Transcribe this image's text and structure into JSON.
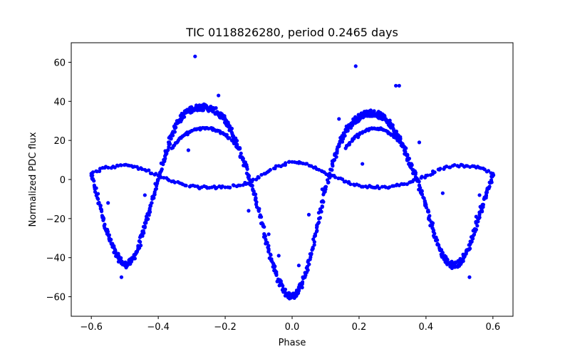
{
  "chart_data": {
    "type": "scatter",
    "title": "TIC 0118826280, period 0.2465 days",
    "xlabel": "Phase",
    "ylabel": "Normalized PDC flux",
    "xlim": [
      -0.66,
      0.66
    ],
    "ylim": [
      -70,
      70
    ],
    "xticks": [
      -0.6,
      -0.4,
      -0.2,
      0.0,
      0.2,
      0.4,
      0.6
    ],
    "xtick_labels": [
      "−0.6",
      "−0.4",
      "−0.2",
      "0.0",
      "0.2",
      "0.4",
      "0.6"
    ],
    "yticks": [
      -60,
      -40,
      -20,
      0,
      20,
      40,
      60
    ],
    "ytick_labels": [
      "−60",
      "−40",
      "−20",
      "0",
      "20",
      "40",
      "60"
    ],
    "grid": false,
    "marker_color": "#0000ff",
    "series": [
      {
        "values_note": "main folded light curve (upper branch)",
        "x": [
          -0.6,
          -0.58,
          -0.56,
          -0.54,
          -0.52,
          -0.5,
          -0.48,
          -0.46,
          -0.44,
          -0.42,
          -0.4,
          -0.38,
          -0.36,
          -0.34,
          -0.32,
          -0.3,
          -0.28,
          -0.26,
          -0.24,
          -0.22,
          -0.2,
          -0.18,
          -0.16,
          -0.14,
          -0.12,
          -0.1,
          -0.08,
          -0.06,
          -0.04,
          -0.02,
          0.0,
          0.02,
          0.04,
          0.06,
          0.08,
          0.1,
          0.12,
          0.14,
          0.16,
          0.18,
          0.2,
          0.22,
          0.24,
          0.26,
          0.28,
          0.3,
          0.32,
          0.34,
          0.36,
          0.38,
          0.4,
          0.42,
          0.44,
          0.46,
          0.48,
          0.5,
          0.52,
          0.54,
          0.56,
          0.58,
          0.6
        ],
        "y": [
          2,
          -10,
          -23,
          -33,
          -40,
          -44,
          -42,
          -35,
          -24,
          -12,
          0,
          12,
          23,
          30,
          34,
          36,
          37,
          37,
          36,
          34,
          30,
          24,
          16,
          7,
          -3,
          -15,
          -29,
          -42,
          -52,
          -58,
          -60,
          -57,
          -49,
          -36,
          -20,
          -5,
          8,
          18,
          25,
          29,
          32,
          34,
          34,
          33,
          31,
          27,
          21,
          13,
          5,
          -3,
          -13,
          -25,
          -35,
          -42,
          -44,
          -43,
          -38,
          -29,
          -18,
          -8,
          2
        ]
      },
      {
        "values_note": "lower branch of main curve",
        "x": [
          -0.36,
          -0.34,
          -0.32,
          -0.3,
          -0.28,
          -0.26,
          -0.24,
          -0.22,
          -0.2,
          -0.18,
          -0.16,
          0.16,
          0.18,
          0.2,
          0.22,
          0.24,
          0.26,
          0.28,
          0.3,
          0.32,
          0.34
        ],
        "y": [
          16,
          20,
          23,
          25,
          26,
          26,
          26,
          25,
          23,
          20,
          16,
          16,
          20,
          23,
          25,
          26,
          26,
          25,
          23,
          20,
          16
        ]
      },
      {
        "values_note": "secondary low-amplitude curve",
        "x": [
          -0.6,
          -0.56,
          -0.52,
          -0.48,
          -0.44,
          -0.4,
          -0.36,
          -0.32,
          -0.28,
          -0.24,
          -0.2,
          -0.16,
          -0.12,
          -0.08,
          -0.04,
          0.0,
          0.04,
          0.08,
          0.12,
          0.16,
          0.2,
          0.24,
          0.28,
          0.32,
          0.36,
          0.4,
          0.44,
          0.48,
          0.52,
          0.56,
          0.6
        ],
        "y": [
          3,
          6,
          7,
          7,
          5,
          2,
          -1,
          -3,
          -4,
          -4,
          -4,
          -3,
          -1,
          3,
          7,
          9,
          8,
          5,
          2,
          -1,
          -3,
          -4,
          -4,
          -3,
          -1,
          2,
          5,
          7,
          7,
          6,
          3
        ]
      },
      {
        "values_note": "outlier points",
        "x": [
          -0.29,
          -0.22,
          -0.55,
          -0.51,
          -0.44,
          -0.31,
          -0.13,
          -0.07,
          -0.04,
          0.02,
          0.05,
          0.09,
          0.14,
          0.19,
          0.21,
          0.31,
          0.32,
          0.38,
          0.45,
          0.53,
          0.55,
          0.56
        ],
        "y": [
          63,
          43,
          -12,
          -50,
          -8,
          15,
          -16,
          -28,
          -39,
          -44,
          -18,
          -5,
          31,
          58,
          8,
          48,
          48,
          19,
          -7,
          -50,
          -19,
          -8
        ]
      }
    ]
  }
}
